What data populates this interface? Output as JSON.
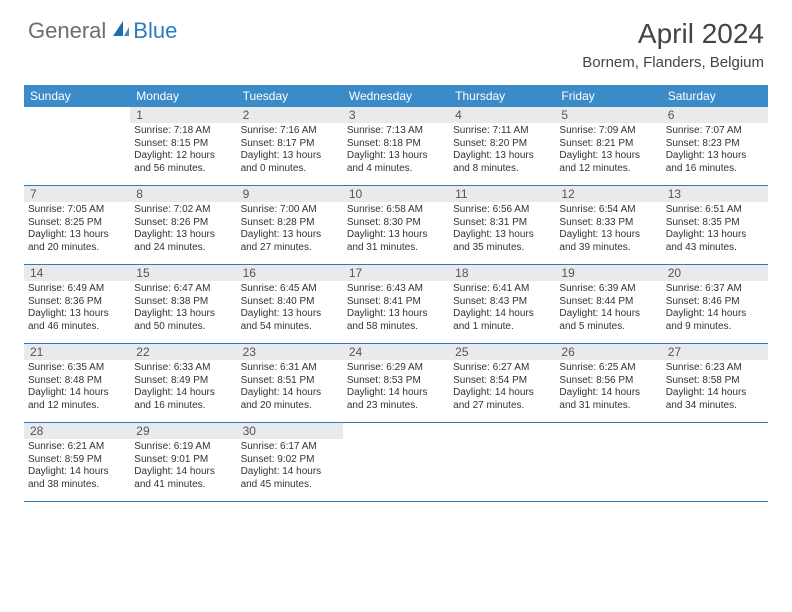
{
  "logo": {
    "general": "General",
    "blue": "Blue"
  },
  "title": "April 2024",
  "location": "Bornem, Flanders, Belgium",
  "day_names": [
    "Sunday",
    "Monday",
    "Tuesday",
    "Wednesday",
    "Thursday",
    "Friday",
    "Saturday"
  ],
  "header_bg": "#3b8bc9",
  "header_fg": "#ffffff",
  "daynum_bg": "#e9eaec",
  "border_color": "#2b7bbf",
  "weeks": [
    [
      null,
      {
        "n": "1",
        "sr": "Sunrise: 7:18 AM",
        "ss": "Sunset: 8:15 PM",
        "dl1": "Daylight: 12 hours",
        "dl2": "and 56 minutes."
      },
      {
        "n": "2",
        "sr": "Sunrise: 7:16 AM",
        "ss": "Sunset: 8:17 PM",
        "dl1": "Daylight: 13 hours",
        "dl2": "and 0 minutes."
      },
      {
        "n": "3",
        "sr": "Sunrise: 7:13 AM",
        "ss": "Sunset: 8:18 PM",
        "dl1": "Daylight: 13 hours",
        "dl2": "and 4 minutes."
      },
      {
        "n": "4",
        "sr": "Sunrise: 7:11 AM",
        "ss": "Sunset: 8:20 PM",
        "dl1": "Daylight: 13 hours",
        "dl2": "and 8 minutes."
      },
      {
        "n": "5",
        "sr": "Sunrise: 7:09 AM",
        "ss": "Sunset: 8:21 PM",
        "dl1": "Daylight: 13 hours",
        "dl2": "and 12 minutes."
      },
      {
        "n": "6",
        "sr": "Sunrise: 7:07 AM",
        "ss": "Sunset: 8:23 PM",
        "dl1": "Daylight: 13 hours",
        "dl2": "and 16 minutes."
      }
    ],
    [
      {
        "n": "7",
        "sr": "Sunrise: 7:05 AM",
        "ss": "Sunset: 8:25 PM",
        "dl1": "Daylight: 13 hours",
        "dl2": "and 20 minutes."
      },
      {
        "n": "8",
        "sr": "Sunrise: 7:02 AM",
        "ss": "Sunset: 8:26 PM",
        "dl1": "Daylight: 13 hours",
        "dl2": "and 24 minutes."
      },
      {
        "n": "9",
        "sr": "Sunrise: 7:00 AM",
        "ss": "Sunset: 8:28 PM",
        "dl1": "Daylight: 13 hours",
        "dl2": "and 27 minutes."
      },
      {
        "n": "10",
        "sr": "Sunrise: 6:58 AM",
        "ss": "Sunset: 8:30 PM",
        "dl1": "Daylight: 13 hours",
        "dl2": "and 31 minutes."
      },
      {
        "n": "11",
        "sr": "Sunrise: 6:56 AM",
        "ss": "Sunset: 8:31 PM",
        "dl1": "Daylight: 13 hours",
        "dl2": "and 35 minutes."
      },
      {
        "n": "12",
        "sr": "Sunrise: 6:54 AM",
        "ss": "Sunset: 8:33 PM",
        "dl1": "Daylight: 13 hours",
        "dl2": "and 39 minutes."
      },
      {
        "n": "13",
        "sr": "Sunrise: 6:51 AM",
        "ss": "Sunset: 8:35 PM",
        "dl1": "Daylight: 13 hours",
        "dl2": "and 43 minutes."
      }
    ],
    [
      {
        "n": "14",
        "sr": "Sunrise: 6:49 AM",
        "ss": "Sunset: 8:36 PM",
        "dl1": "Daylight: 13 hours",
        "dl2": "and 46 minutes."
      },
      {
        "n": "15",
        "sr": "Sunrise: 6:47 AM",
        "ss": "Sunset: 8:38 PM",
        "dl1": "Daylight: 13 hours",
        "dl2": "and 50 minutes."
      },
      {
        "n": "16",
        "sr": "Sunrise: 6:45 AM",
        "ss": "Sunset: 8:40 PM",
        "dl1": "Daylight: 13 hours",
        "dl2": "and 54 minutes."
      },
      {
        "n": "17",
        "sr": "Sunrise: 6:43 AM",
        "ss": "Sunset: 8:41 PM",
        "dl1": "Daylight: 13 hours",
        "dl2": "and 58 minutes."
      },
      {
        "n": "18",
        "sr": "Sunrise: 6:41 AM",
        "ss": "Sunset: 8:43 PM",
        "dl1": "Daylight: 14 hours",
        "dl2": "and 1 minute."
      },
      {
        "n": "19",
        "sr": "Sunrise: 6:39 AM",
        "ss": "Sunset: 8:44 PM",
        "dl1": "Daylight: 14 hours",
        "dl2": "and 5 minutes."
      },
      {
        "n": "20",
        "sr": "Sunrise: 6:37 AM",
        "ss": "Sunset: 8:46 PM",
        "dl1": "Daylight: 14 hours",
        "dl2": "and 9 minutes."
      }
    ],
    [
      {
        "n": "21",
        "sr": "Sunrise: 6:35 AM",
        "ss": "Sunset: 8:48 PM",
        "dl1": "Daylight: 14 hours",
        "dl2": "and 12 minutes."
      },
      {
        "n": "22",
        "sr": "Sunrise: 6:33 AM",
        "ss": "Sunset: 8:49 PM",
        "dl1": "Daylight: 14 hours",
        "dl2": "and 16 minutes."
      },
      {
        "n": "23",
        "sr": "Sunrise: 6:31 AM",
        "ss": "Sunset: 8:51 PM",
        "dl1": "Daylight: 14 hours",
        "dl2": "and 20 minutes."
      },
      {
        "n": "24",
        "sr": "Sunrise: 6:29 AM",
        "ss": "Sunset: 8:53 PM",
        "dl1": "Daylight: 14 hours",
        "dl2": "and 23 minutes."
      },
      {
        "n": "25",
        "sr": "Sunrise: 6:27 AM",
        "ss": "Sunset: 8:54 PM",
        "dl1": "Daylight: 14 hours",
        "dl2": "and 27 minutes."
      },
      {
        "n": "26",
        "sr": "Sunrise: 6:25 AM",
        "ss": "Sunset: 8:56 PM",
        "dl1": "Daylight: 14 hours",
        "dl2": "and 31 minutes."
      },
      {
        "n": "27",
        "sr": "Sunrise: 6:23 AM",
        "ss": "Sunset: 8:58 PM",
        "dl1": "Daylight: 14 hours",
        "dl2": "and 34 minutes."
      }
    ],
    [
      {
        "n": "28",
        "sr": "Sunrise: 6:21 AM",
        "ss": "Sunset: 8:59 PM",
        "dl1": "Daylight: 14 hours",
        "dl2": "and 38 minutes."
      },
      {
        "n": "29",
        "sr": "Sunrise: 6:19 AM",
        "ss": "Sunset: 9:01 PM",
        "dl1": "Daylight: 14 hours",
        "dl2": "and 41 minutes."
      },
      {
        "n": "30",
        "sr": "Sunrise: 6:17 AM",
        "ss": "Sunset: 9:02 PM",
        "dl1": "Daylight: 14 hours",
        "dl2": "and 45 minutes."
      },
      null,
      null,
      null,
      null
    ]
  ]
}
